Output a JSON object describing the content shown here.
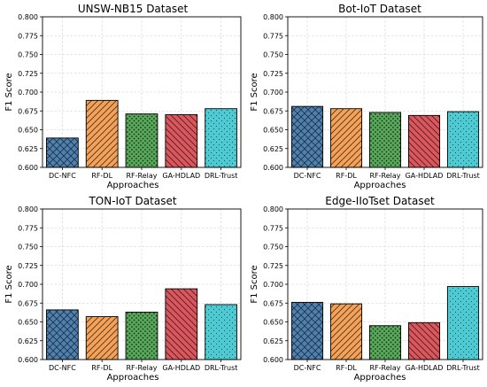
{
  "chart_data": [
    {
      "type": "bar",
      "title": "UNSW-NB15 Dataset",
      "xlabel": "Approaches",
      "ylabel": "F1 Score",
      "ylim": [
        0.6,
        0.8
      ],
      "yticks": [
        "0.600",
        "0.625",
        "0.650",
        "0.675",
        "0.700",
        "0.725",
        "0.750",
        "0.775",
        "0.800"
      ],
      "grid": true,
      "categories": [
        "DC-NFC",
        "RF-DL",
        "RF-Relay",
        "GA-HDLAD",
        "DRL-Trust"
      ],
      "values": [
        0.639,
        0.689,
        0.671,
        0.67,
        0.678
      ]
    },
    {
      "type": "bar",
      "title": "Bot-IoT Dataset",
      "xlabel": "Approaches",
      "ylabel": "F1 Score",
      "ylim": [
        0.6,
        0.8
      ],
      "yticks": [
        "0.600",
        "0.625",
        "0.650",
        "0.675",
        "0.700",
        "0.725",
        "0.750",
        "0.775",
        "0.800"
      ],
      "grid": true,
      "categories": [
        "DC-NFC",
        "RF-DL",
        "RF-Relay",
        "GA-HDLAD",
        "DRL-Trust"
      ],
      "values": [
        0.681,
        0.678,
        0.673,
        0.669,
        0.674
      ]
    },
    {
      "type": "bar",
      "title": "TON-IoT Dataset",
      "xlabel": "Approaches",
      "ylabel": "F1 Score",
      "ylim": [
        0.6,
        0.8
      ],
      "yticks": [
        "0.600",
        "0.625",
        "0.650",
        "0.675",
        "0.700",
        "0.725",
        "0.750",
        "0.775",
        "0.800"
      ],
      "grid": true,
      "categories": [
        "DC-NFC",
        "RF-DL",
        "RF-Relay",
        "GA-HDLAD",
        "DRL-Trust"
      ],
      "values": [
        0.666,
        0.657,
        0.663,
        0.694,
        0.673
      ]
    },
    {
      "type": "bar",
      "title": "Edge-IIoTset Dataset",
      "xlabel": "Approaches",
      "ylabel": "F1 Score",
      "ylim": [
        0.6,
        0.8
      ],
      "yticks": [
        "0.600",
        "0.625",
        "0.650",
        "0.675",
        "0.700",
        "0.725",
        "0.750",
        "0.775",
        "0.800"
      ],
      "grid": true,
      "categories": [
        "DC-NFC",
        "RF-DL",
        "RF-Relay",
        "GA-HDLAD",
        "DRL-Trust"
      ],
      "values": [
        0.676,
        0.674,
        0.645,
        0.649,
        0.697
      ]
    }
  ],
  "bar_styles": [
    {
      "color": "#4f81b0",
      "pattern": "crosshatch"
    },
    {
      "color": "#f4a259",
      "pattern": "diagonal-forward"
    },
    {
      "color": "#5aa85a",
      "pattern": "dots"
    },
    {
      "color": "#d9575d",
      "pattern": "diagonal-back"
    },
    {
      "color": "#4ecad3",
      "pattern": "fine-dots"
    }
  ]
}
